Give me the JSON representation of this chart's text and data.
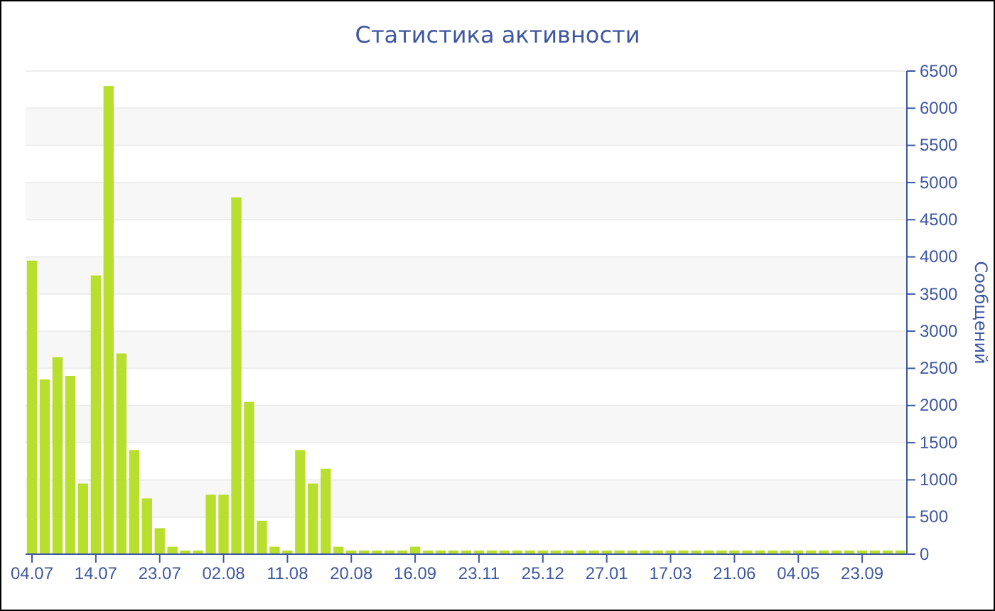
{
  "chart_data": {
    "type": "bar",
    "title": "Статистика активности",
    "ylabel": "Сообщений",
    "categories": [
      "04.07",
      null,
      null,
      null,
      null,
      "14.07",
      null,
      null,
      null,
      null,
      "23.07",
      null,
      null,
      null,
      null,
      "02.08",
      null,
      null,
      null,
      null,
      "11.08",
      null,
      null,
      null,
      null,
      "20.08",
      null,
      null,
      null,
      null,
      "16.09",
      null,
      null,
      null,
      null,
      "23.11",
      null,
      null,
      null,
      null,
      "25.12",
      null,
      null,
      null,
      null,
      "27.01",
      null,
      null,
      null,
      null,
      "17.03",
      null,
      null,
      null,
      null,
      "21.06",
      null,
      null,
      null,
      null,
      "04.05",
      null,
      null,
      null,
      null,
      "23.09",
      null,
      null,
      null
    ],
    "values": [
      3950,
      2350,
      2650,
      2400,
      950,
      3750,
      6300,
      2700,
      1400,
      750,
      350,
      100,
      50,
      50,
      800,
      800,
      4800,
      2050,
      450,
      100,
      50,
      1400,
      950,
      1150,
      100,
      50,
      50,
      50,
      50,
      50,
      100,
      50,
      50,
      50,
      50,
      50,
      50,
      50,
      50,
      50,
      50,
      50,
      50,
      50,
      50,
      50,
      50,
      50,
      50,
      50,
      50,
      50,
      50,
      50,
      50,
      50,
      50,
      50,
      50,
      50,
      50,
      50,
      50,
      50,
      50,
      50,
      50,
      50,
      50
    ],
    "color": "#b8de2e",
    "ylim": [
      0,
      6500
    ],
    "yticks": [
      0,
      500,
      1000,
      1500,
      2000,
      2500,
      3000,
      3500,
      4000,
      4500,
      5000,
      5500,
      6000,
      6500
    ],
    "grid": "y"
  }
}
